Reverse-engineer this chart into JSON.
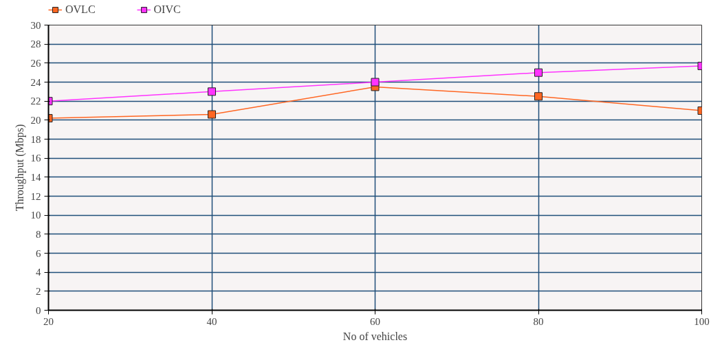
{
  "chart_data": {
    "type": "line",
    "xlabel": "No of vehicles",
    "ylabel": "Throughput (Mbps)",
    "x": [
      20,
      40,
      60,
      80,
      100
    ],
    "series": [
      {
        "name": "OVLC",
        "color": "#ff6622",
        "values": [
          20.2,
          20.6,
          23.5,
          22.5,
          21.0
        ]
      },
      {
        "name": "OIVC",
        "color": "#ff33ff",
        "values": [
          22,
          23,
          24,
          25,
          25.7
        ]
      }
    ],
    "xlim": [
      20,
      100
    ],
    "xticks": [
      20,
      40,
      60,
      80,
      100
    ],
    "ylim": [
      0,
      30
    ],
    "yticks": [
      0,
      2,
      4,
      6,
      8,
      10,
      12,
      14,
      16,
      18,
      20,
      22,
      24,
      26,
      28,
      30
    ],
    "grid": true,
    "legend": "top left",
    "marker": "square",
    "line_style": "solid"
  }
}
